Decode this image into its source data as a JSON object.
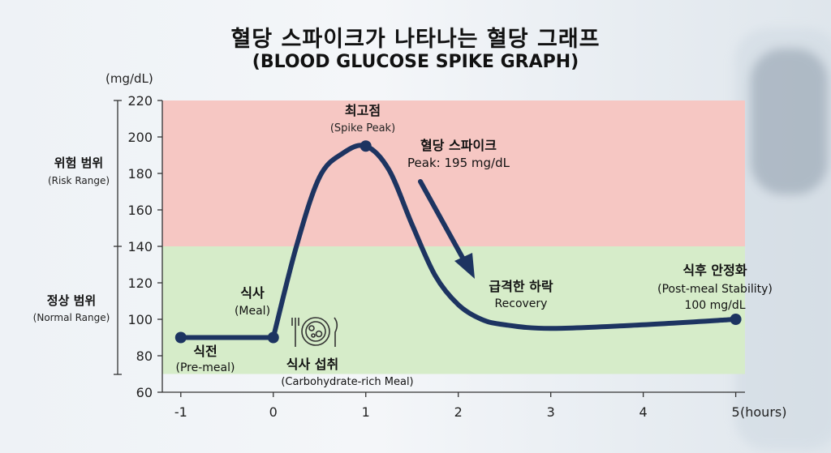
{
  "title": "혈당 스파이크가 나타나는 혈당 그래프",
  "subtitle": "(BLOOD GLUCOSE SPIKE GRAPH)",
  "unit_label": "(mg/dL)",
  "x_unit_label": "(hours)",
  "zones": {
    "risk": {
      "label": "위험 범위",
      "sublabel": "(Risk Range)",
      "from": 140,
      "to": 220,
      "color": "#f6c7c3"
    },
    "normal": {
      "label": "정상 범위",
      "sublabel": "(Normal Range)",
      "from": 70,
      "to": 140,
      "color": "#d6ecc9"
    }
  },
  "annotations": {
    "peak": {
      "label": "최고점",
      "sublabel": "(Spike Peak)"
    },
    "spike": {
      "label": "혈당 스파이크",
      "sublabel": "Peak: 195 mg/dL"
    },
    "drop": {
      "label": "급격한 하락",
      "sublabel": "Recovery"
    },
    "stable": {
      "label": "식후 안정화",
      "sublabel": "(Post-meal Stability)",
      "value": "100 mg/dL"
    },
    "meal": {
      "label": "식사",
      "sublabel": "(Meal)"
    },
    "premeal": {
      "label": "식전",
      "sublabel": "(Pre-meal)"
    },
    "intake": {
      "label": "식사 섭취",
      "sublabel": "(Carbohydrate-rich Meal)"
    }
  },
  "icons": {
    "meal": "plate-fork-knife-icon"
  },
  "colors": {
    "line": "#1d3461",
    "risk": "#f6c7c3",
    "normal": "#d6ecc9"
  },
  "chart_data": {
    "type": "line",
    "title": "혈당 스파이크가 나타나는 혈당 그래프",
    "xlabel": "(hours)",
    "ylabel": "(mg/dL)",
    "xlim": [
      -1.2,
      5.1
    ],
    "ylim": [
      60,
      220
    ],
    "xticks": [
      -1,
      0,
      1,
      2,
      3,
      4,
      5
    ],
    "yticks": [
      60,
      80,
      100,
      120,
      140,
      160,
      180,
      200,
      220
    ],
    "grid": false,
    "series": [
      {
        "name": "",
        "x": [
          -1,
          0,
          0.25,
          0.5,
          0.75,
          1,
          1.25,
          1.5,
          1.75,
          2,
          2.25,
          2.5,
          3,
          4,
          5
        ],
        "y": [
          90,
          90,
          140,
          178,
          191,
          195,
          182,
          152,
          124,
          108,
          100,
          97,
          95,
          97,
          100
        ]
      }
    ],
    "markers": [
      {
        "x": -1,
        "y": 90
      },
      {
        "x": 0,
        "y": 90
      },
      {
        "x": 1,
        "y": 195
      },
      {
        "x": 5,
        "y": 100
      }
    ]
  }
}
